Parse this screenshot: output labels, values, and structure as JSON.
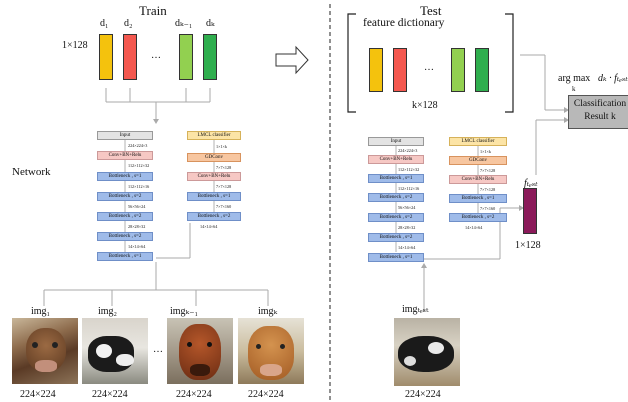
{
  "train": {
    "title": "Train",
    "vector_dim": "1×128",
    "vectors": [
      {
        "label": "d₁",
        "color": "#f4c20d"
      },
      {
        "label": "d₂",
        "color": "#f4584f"
      },
      {
        "label": "dₖ₋₁",
        "color": "#92d050"
      },
      {
        "label": "dₖ",
        "color": "#2fae4e"
      }
    ],
    "ellipsis": "…",
    "network_label": "Network",
    "images": [
      {
        "label": "img₁",
        "size": "224×224"
      },
      {
        "label": "img₂",
        "size": "224×224"
      },
      {
        "label": "imgₖ₋₁",
        "size": "224×224"
      },
      {
        "label": "imgₖ",
        "size": "224×224"
      }
    ]
  },
  "test": {
    "title": "Test",
    "dictionary_title": "feature dictionary",
    "dictionary_dim": "k×128",
    "dictionary_colors": [
      "#f4c20d",
      "#f4584f",
      "#92d050",
      "#2fae4e"
    ],
    "ftest_label": "fₜₑₛₜ",
    "ftest_dim": "1×128",
    "ftest_color": "#8b1a5a",
    "argmax_label": "arg max",
    "argmax_sub": "k",
    "argmax_expr": "dₖ · fₜₑₛₜ",
    "classification": "Classification\nResult k",
    "image_label": "imgₜₑₛₜ",
    "image_size": "224×224"
  },
  "net": {
    "left_col": [
      "Input",
      "Conv+BN+Relu",
      "Bottleneck , s=1",
      "Bottleneck , s=2",
      "Bottleneck , s=2",
      "Bottleneck , s=2",
      "Bottleneck , s=1"
    ],
    "left_dims": [
      "224×224×3",
      "112×112×32",
      "112×112×16",
      "56×56×24",
      "28×28×32",
      "14×14×64"
    ],
    "right_col": [
      "LMCL classifier",
      "GDConv",
      "Conv+BN+Relu",
      "Bottleneck , s=1",
      "Bottleneck , s=2"
    ],
    "right_dims": [
      "1×1×k",
      "7×7×128",
      "7×7×128",
      "7×7×160",
      "14×14×64"
    ]
  }
}
